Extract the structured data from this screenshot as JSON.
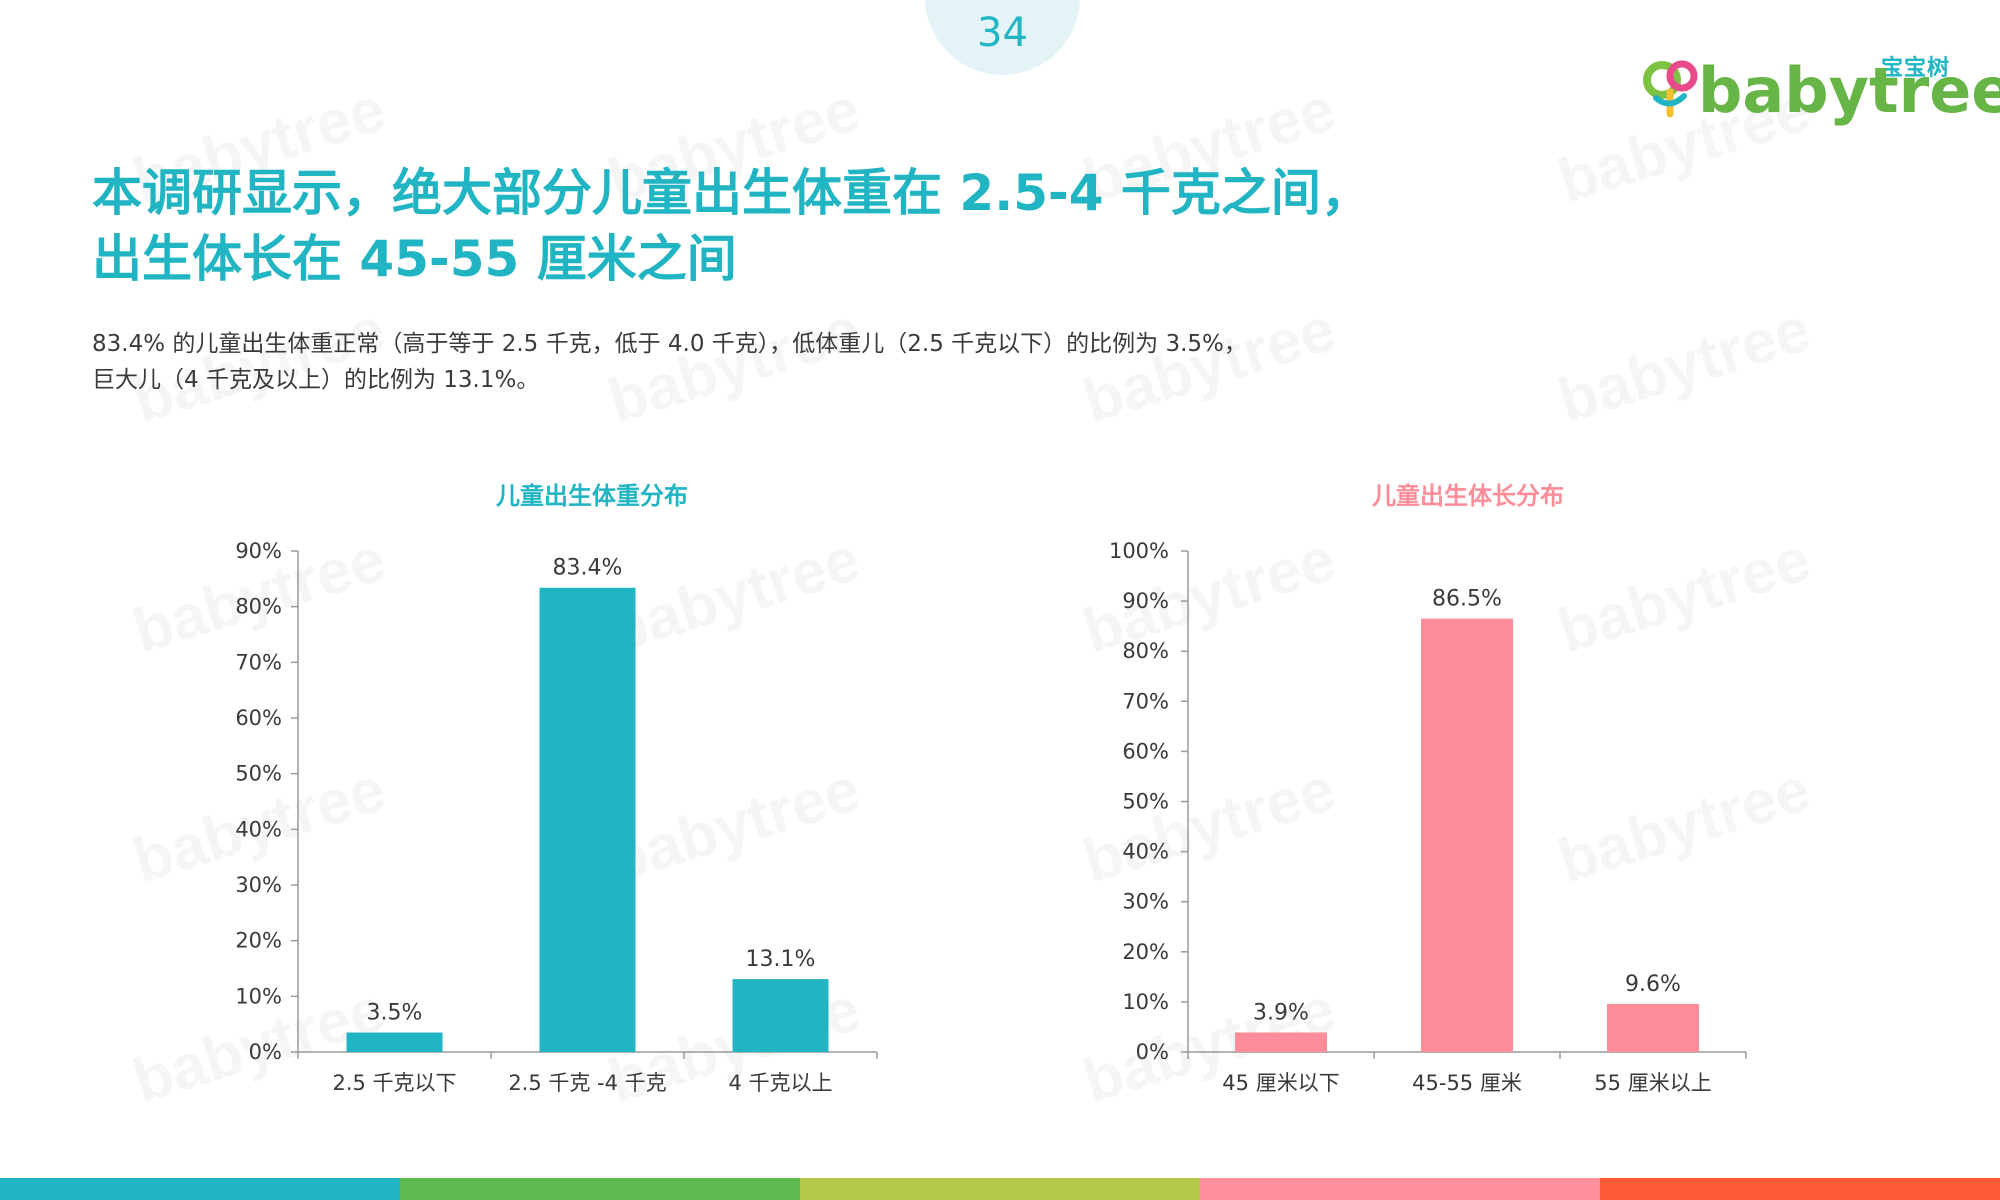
{
  "page_number": "34",
  "logo": {
    "cn": "宝宝树",
    "word": "babytree",
    "mark_colors": [
      "#7dc242",
      "#e94b8a",
      "#f6c12f",
      "#21b5c3"
    ]
  },
  "watermark": {
    "cn": "宝宝树",
    "word": "babytree"
  },
  "headline": {
    "line1": "本调研显示，绝大部分儿童出生体重在 2.5-4 千克之间，",
    "line2": "出生体长在 45-55 厘米之间"
  },
  "summary": {
    "line1": "83.4% 的儿童出生体重正常（高于等于 2.5 千克，低于 4.0 千克），低体重儿（2.5 千克以下）的比例为 3.5%，",
    "line2": "巨大儿（4 千克及以上）的比例为 13.1%。"
  },
  "colors": {
    "accent": "#21b5c3",
    "pink": "#ff8c99",
    "text": "#3a3a3a",
    "axis": "#9a9a9a"
  },
  "bottom_bar_colors": [
    "#21b5c3",
    "#5dba4f",
    "#b3c74b",
    "#fd8f9c",
    "#ff5a36"
  ],
  "chart_data": [
    {
      "type": "bar",
      "title": "儿童出生体重分布",
      "title_color": "#21b5c3",
      "bar_color": "#21b5c3",
      "categories": [
        "2.5 千克以下",
        "2.5 千克 -4 千克",
        "4 千克以上"
      ],
      "values": [
        3.5,
        83.4,
        13.1
      ],
      "data_labels": [
        "3.5%",
        "83.4%",
        "13.1%"
      ],
      "ylim": [
        0,
        90
      ],
      "yticks": [
        0,
        10,
        20,
        30,
        40,
        50,
        60,
        70,
        80,
        90
      ],
      "ytick_labels": [
        "0%",
        "10%",
        "20%",
        "30%",
        "40%",
        "50%",
        "60%",
        "70%",
        "80%",
        "90%"
      ],
      "xlabel": "",
      "ylabel": "",
      "grid": false,
      "legend": "none"
    },
    {
      "type": "bar",
      "title": "儿童出生体长分布",
      "title_color": "#ff8c99",
      "bar_color": "#ff8c99",
      "categories": [
        "45 厘米以下",
        "45-55 厘米",
        "55 厘米以上"
      ],
      "values": [
        3.9,
        86.5,
        9.6
      ],
      "data_labels": [
        "3.9%",
        "86.5%",
        "9.6%"
      ],
      "ylim": [
        0,
        100
      ],
      "yticks": [
        0,
        10,
        20,
        30,
        40,
        50,
        60,
        70,
        80,
        90,
        100
      ],
      "ytick_labels": [
        "0%",
        "10%",
        "20%",
        "30%",
        "40%",
        "50%",
        "60%",
        "70%",
        "80%",
        "90%",
        "100%"
      ],
      "xlabel": "",
      "ylabel": "",
      "grid": false,
      "legend": "none"
    }
  ]
}
